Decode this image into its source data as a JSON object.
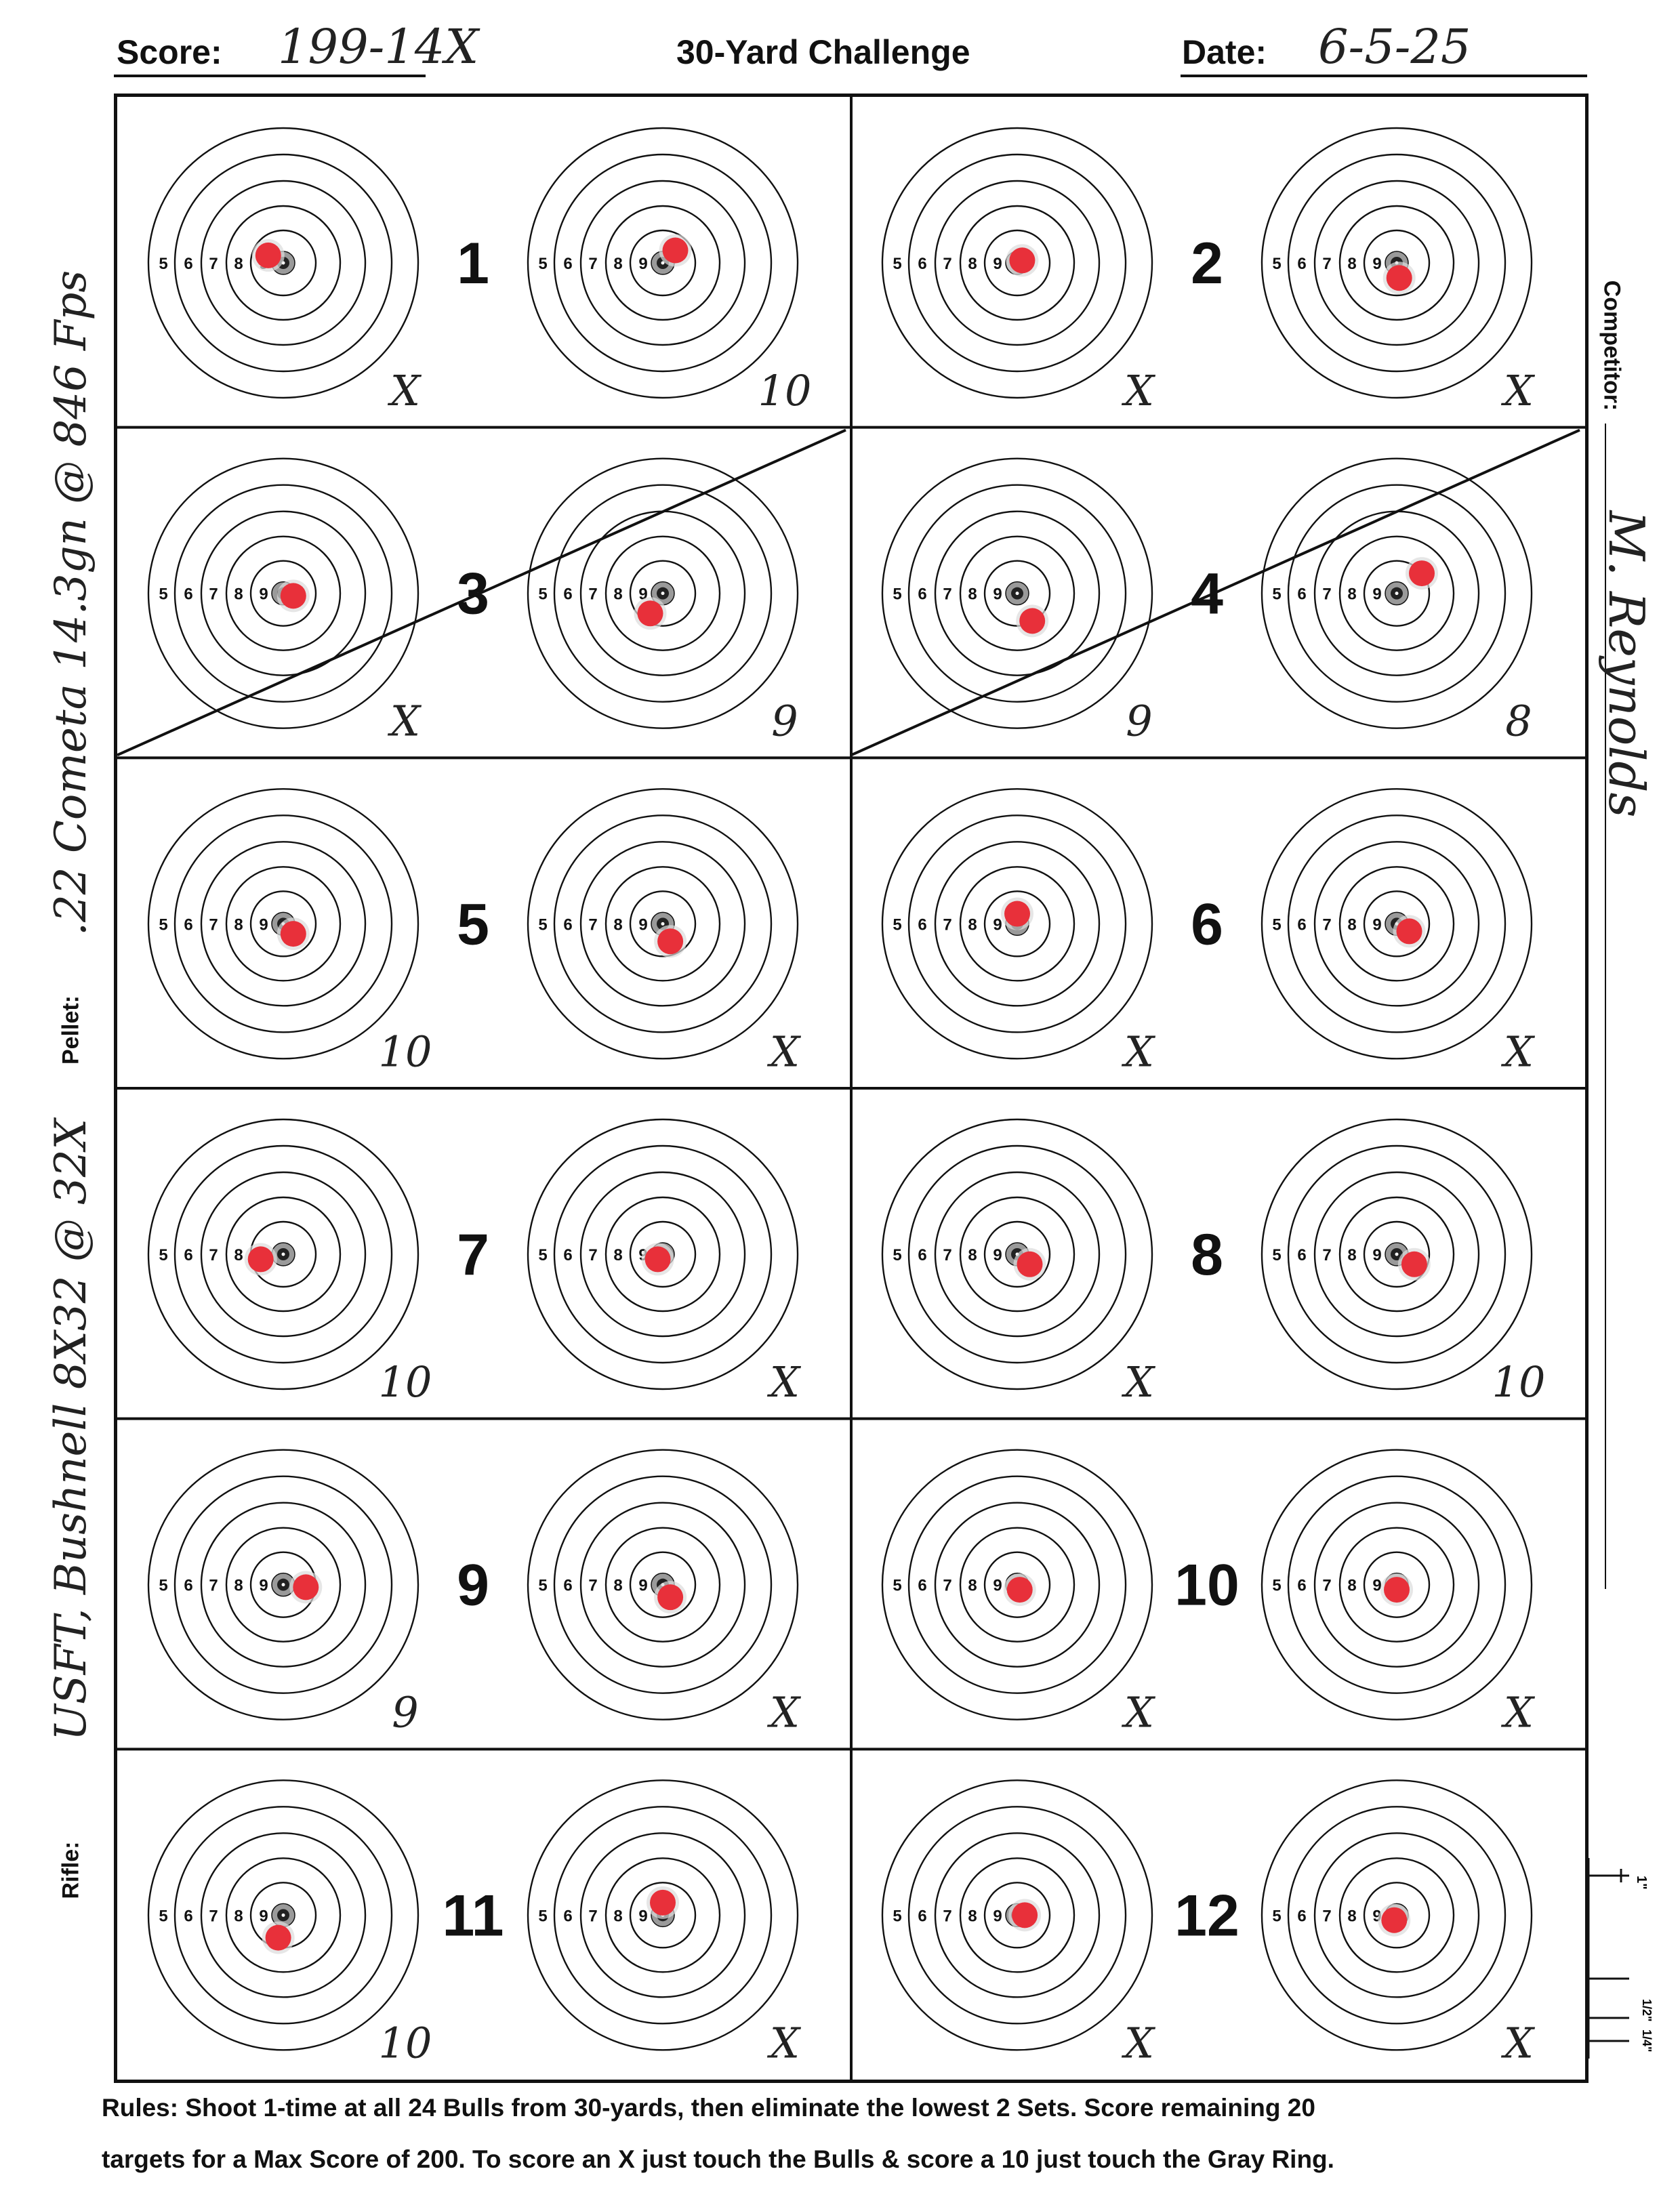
{
  "header": {
    "score_label": "Score:",
    "score_value": "199-14X",
    "title": "30-Yard Challenge",
    "date_label": "Date:",
    "date_value": "6-5-25"
  },
  "left_margin": {
    "pellet_label": "Pellet:",
    "pellet_value": ".22 Cometa 14.3gn @ 846 Fps",
    "rifle_label": "Rifle:",
    "rifle_value": "USFT, Bushnell 8X32 @ 32X"
  },
  "right_margin": {
    "competitor_label": "Competitor:",
    "competitor_value": "M. Reynolds",
    "scale_marks": [
      "1\"",
      "1/2\"",
      "1/4\""
    ]
  },
  "ring_labels": [
    "5",
    "6",
    "7",
    "8",
    "9"
  ],
  "sets": [
    {
      "number": "1",
      "scores": [
        "X",
        "10"
      ]
    },
    {
      "number": "2",
      "scores": [
        "X",
        "X"
      ]
    },
    {
      "number": "3",
      "scores": [
        "X",
        "9"
      ]
    },
    {
      "number": "4",
      "scores": [
        "9",
        "8"
      ]
    },
    {
      "number": "5",
      "scores": [
        "10",
        "X"
      ]
    },
    {
      "number": "6",
      "scores": [
        "X",
        "X"
      ]
    },
    {
      "number": "7",
      "scores": [
        "10",
        "X"
      ]
    },
    {
      "number": "8",
      "scores": [
        "X",
        "10"
      ]
    },
    {
      "number": "9",
      "scores": [
        "9",
        "X"
      ]
    },
    {
      "number": "10",
      "scores": [
        "X",
        "X"
      ]
    },
    {
      "number": "11",
      "scores": [
        "10",
        "X"
      ]
    },
    {
      "number": "12",
      "scores": [
        "X",
        "X"
      ]
    }
  ],
  "crossed_out_sets": [
    "3",
    "4"
  ],
  "rules": {
    "line1": "Rules: Shoot 1-time at all 24 Bulls from 30-yards, then eliminate the lowest 2 Sets. Score remaining 20",
    "line2": "targets for a Max Score of 200. To score an X just touch the Bulls & score a 10 just touch the Gray Ring."
  },
  "colors": {
    "ink": "#111111",
    "hit_red": "#e8303a",
    "bull": "#222222",
    "gray_ring": "#9a9a9a"
  }
}
